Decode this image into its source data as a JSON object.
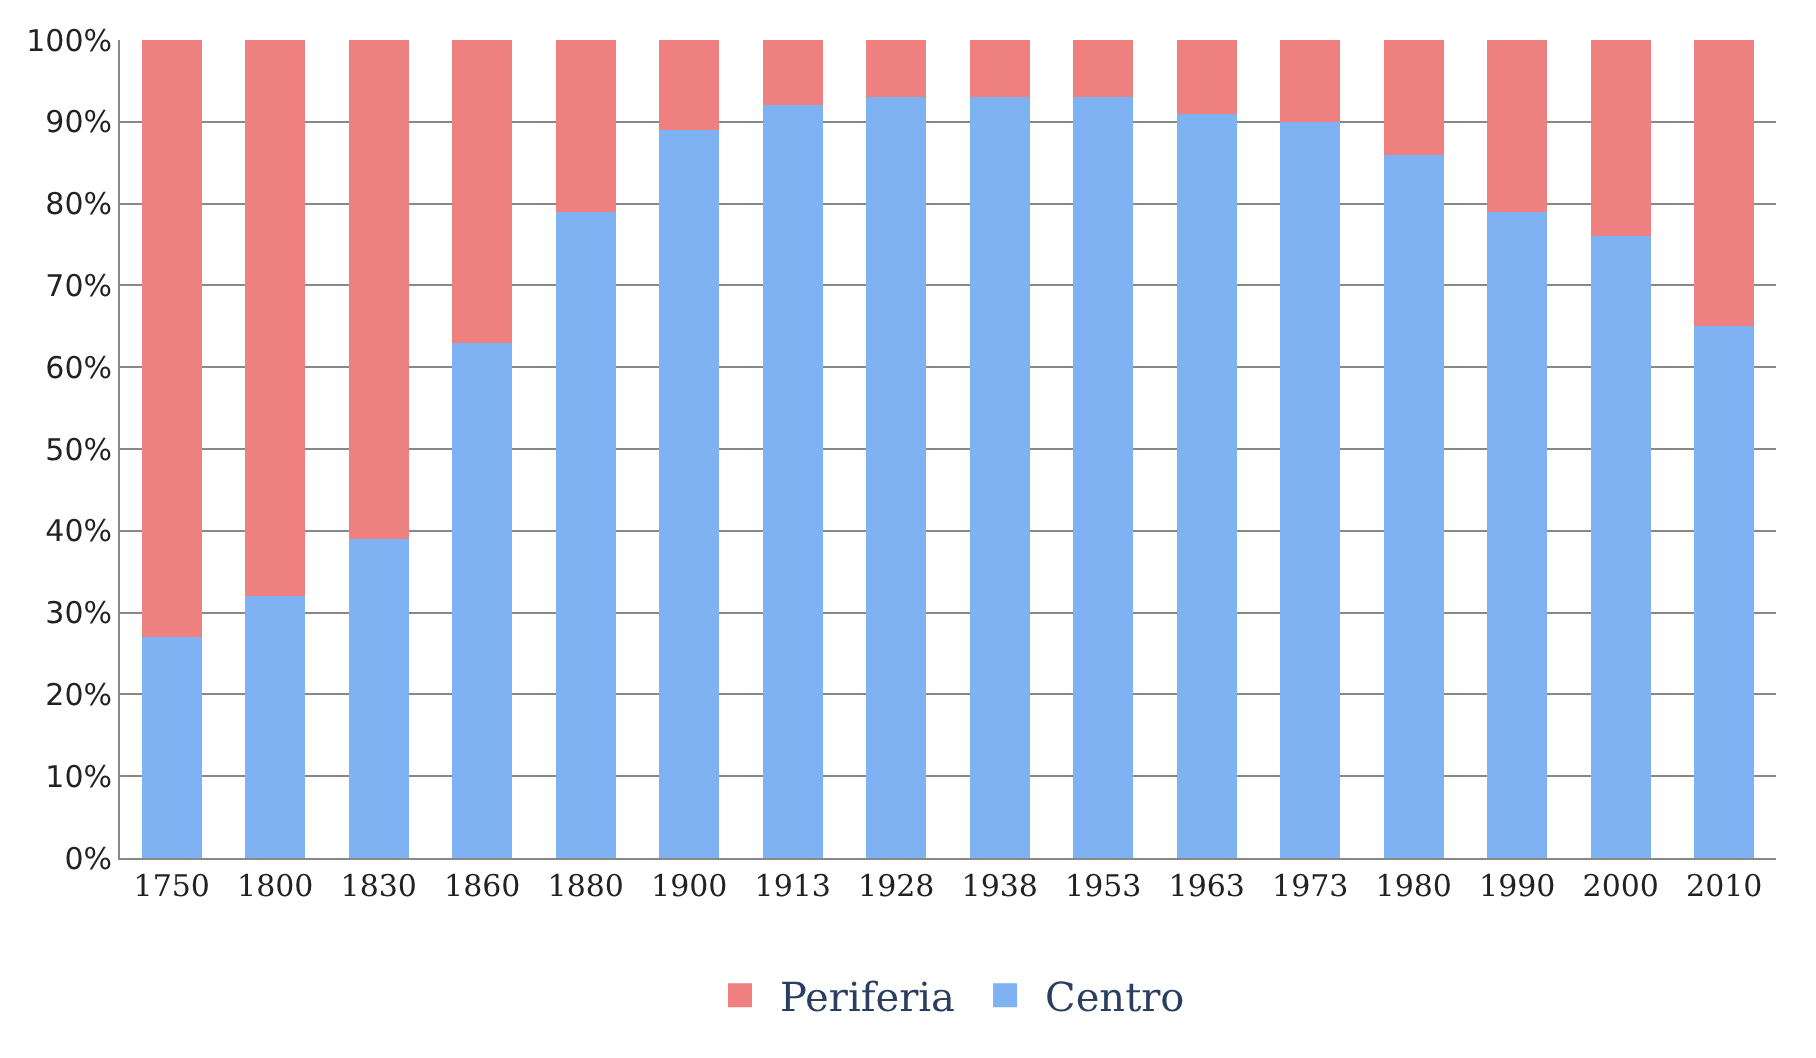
{
  "chart_data": {
    "type": "bar",
    "stacked": true,
    "categories": [
      "1750",
      "1800",
      "1830",
      "1860",
      "1880",
      "1900",
      "1913",
      "1928",
      "1938",
      "1953",
      "1963",
      "1973",
      "1980",
      "1990",
      "2000",
      "2010"
    ],
    "series": [
      {
        "name": "Centro",
        "color": "#7eb2f2",
        "values": [
          27,
          32,
          39,
          63,
          79,
          89,
          92,
          93,
          93,
          93,
          91,
          90,
          86,
          79,
          76,
          65
        ]
      },
      {
        "name": "Periferia",
        "color": "#ee8080",
        "values": [
          73,
          68,
          61,
          37,
          21,
          11,
          8,
          7,
          7,
          7,
          9,
          10,
          14,
          21,
          24,
          35
        ]
      }
    ],
    "ylim": [
      0,
      100
    ],
    "yticks": [
      {
        "value": 0,
        "label": "0%"
      },
      {
        "value": 10,
        "label": "10%"
      },
      {
        "value": 20,
        "label": "20%"
      },
      {
        "value": 30,
        "label": "30%"
      },
      {
        "value": 40,
        "label": "40%"
      },
      {
        "value": 50,
        "label": "50%"
      },
      {
        "value": 60,
        "label": "60%"
      },
      {
        "value": 70,
        "label": "70%"
      },
      {
        "value": 80,
        "label": "80%"
      },
      {
        "value": 90,
        "label": "90%"
      },
      {
        "value": 100,
        "label": "100%"
      }
    ],
    "grid": "y",
    "legend": "bottom"
  }
}
